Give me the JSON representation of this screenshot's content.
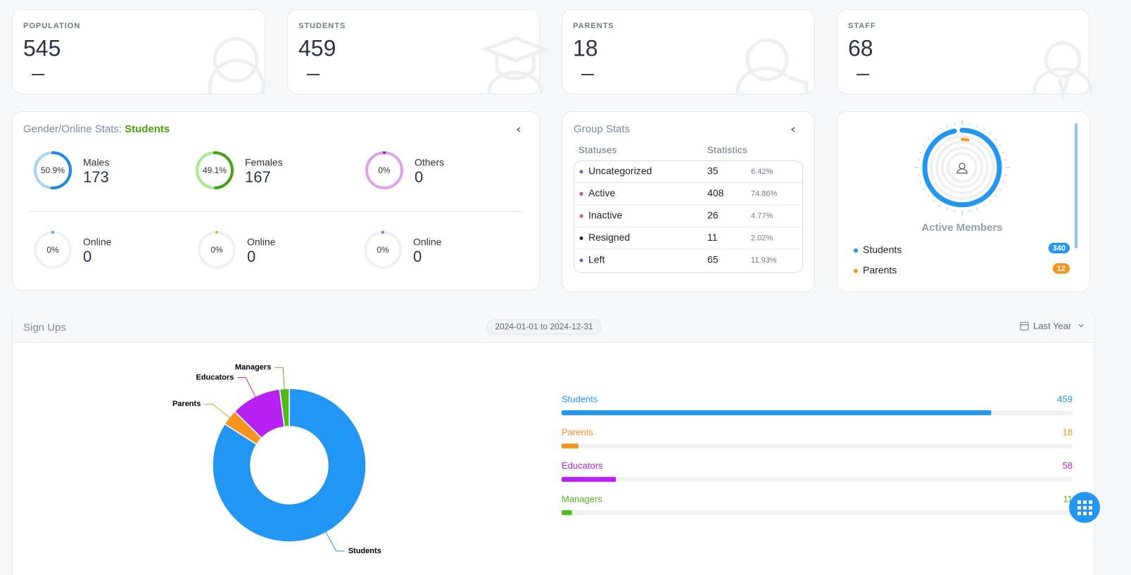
{
  "stat_cards": [
    {
      "label": "POPULATION",
      "value": 545
    },
    {
      "label": "STUDENTS",
      "value": 459
    },
    {
      "label": "PARENTS",
      "value": 18
    },
    {
      "label": "STAFF",
      "value": 68
    }
  ],
  "gender_online_stats": {
    "title": "Gender/Online Stats:",
    "audience": "Students",
    "gender": [
      {
        "name": "Males",
        "count": 173,
        "percent": 50.9,
        "percent_label": "50.9%",
        "color": "#1e88e5",
        "track": "#a9d4f5"
      },
      {
        "name": "Females",
        "count": 167,
        "percent": 49.1,
        "percent_label": "49.1%",
        "color": "#43a014",
        "track": "#a8ea8a"
      },
      {
        "name": "Others",
        "count": 0,
        "percent": 0,
        "percent_label": "0%",
        "color": "#8e24aa",
        "track": "#dca2f0"
      }
    ],
    "online": [
      {
        "name": "Online",
        "count": 0,
        "percent": 0,
        "percent_label": "0%",
        "color": "#42a5f5"
      },
      {
        "name": "Online",
        "count": 0,
        "percent": 0,
        "percent_label": "0%",
        "color": "#7ed957"
      },
      {
        "name": "Online",
        "count": 0,
        "percent": 0,
        "percent_label": "0%",
        "color": "#c04ee8"
      }
    ]
  },
  "group_stats": {
    "title": "Group Stats",
    "columns": [
      "Statuses",
      "Statistics"
    ],
    "rows": [
      {
        "status": "Uncategorized",
        "count": 35,
        "share": "6.42%",
        "color": "#7e57c2"
      },
      {
        "status": "Active",
        "count": 408,
        "share": "74.86%",
        "color": "#e040a0"
      },
      {
        "status": "Inactive",
        "count": 26,
        "share": "4.77%",
        "color": "#e040a0"
      },
      {
        "status": "Resigned",
        "count": 11,
        "share": "2.02%",
        "color": "#1a1f4a"
      },
      {
        "status": "Left",
        "count": 65,
        "share": "11.93%",
        "color": "#7e57c2"
      }
    ]
  },
  "active_members": {
    "title": "Active Members",
    "items": [
      {
        "name": "Students",
        "count": 340,
        "color": "#2196f3"
      },
      {
        "name": "Parents",
        "count": 12,
        "color": "#f7941d"
      }
    ]
  },
  "sign_ups": {
    "title": "Sign Ups",
    "date_range": "2024-01-01 to 2024-12-31",
    "period": "Last Year",
    "chart_data": {
      "type": "pie",
      "donut": true,
      "categories": [
        "Students",
        "Parents",
        "Educators",
        "Managers"
      ],
      "values": [
        459,
        18,
        58,
        11
      ],
      "colors": [
        "#2196f3",
        "#f7941d",
        "#b620f0",
        "#52b81e"
      ]
    }
  }
}
